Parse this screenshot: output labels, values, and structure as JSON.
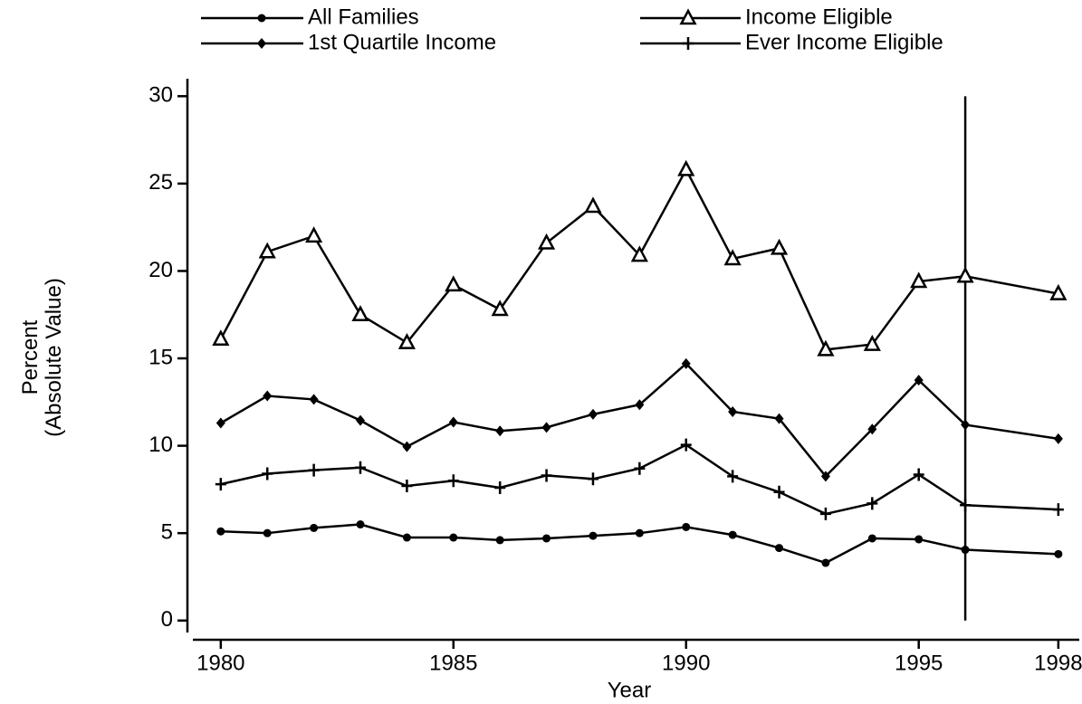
{
  "chart_data": {
    "type": "line",
    "x": [
      1980,
      1981,
      1982,
      1983,
      1984,
      1985,
      1986,
      1987,
      1988,
      1989,
      1990,
      1991,
      1992,
      1993,
      1994,
      1995,
      1996,
      1998
    ],
    "xlabel": "Year",
    "ylabel": [
      "Percent",
      "(Absolute Value)"
    ],
    "xlim": [
      1979.4,
      1998.45
    ],
    "xticks": [
      1980,
      1985,
      1990,
      1995,
      1998
    ],
    "ylim": [
      -1.1,
      31
    ],
    "yticks": [
      0,
      5,
      10,
      15,
      20,
      25,
      30
    ],
    "reference_line": {
      "x": 1996,
      "y": [
        0,
        30
      ]
    },
    "series": [
      {
        "name": "All Families",
        "color": "#000000",
        "marker": "circle",
        "values": [
          5.1,
          5.0,
          5.3,
          5.5,
          4.75,
          4.75,
          4.6,
          4.7,
          4.85,
          5.0,
          5.35,
          4.9,
          4.15,
          3.3,
          4.7,
          4.65,
          4.05,
          3.8
        ]
      },
      {
        "name": "Income Eligible",
        "color": "#000000",
        "marker": "triangle",
        "values": [
          16.1,
          21.1,
          22.0,
          17.5,
          15.9,
          19.2,
          17.8,
          21.6,
          23.7,
          20.9,
          25.8,
          20.7,
          21.3,
          15.5,
          15.8,
          19.4,
          19.7,
          18.7
        ]
      },
      {
        "name": "1st Quartile Income",
        "color": "#000000",
        "marker": "diamond",
        "values": [
          11.3,
          12.85,
          12.65,
          11.45,
          9.95,
          11.35,
          10.85,
          11.05,
          11.8,
          12.35,
          14.7,
          11.95,
          11.55,
          8.25,
          10.95,
          13.75,
          11.2,
          10.4
        ]
      },
      {
        "name": "Ever Income Eligible",
        "color": "#000000",
        "marker": "plus",
        "values": [
          7.8,
          8.4,
          8.6,
          8.75,
          7.7,
          8.0,
          7.6,
          8.3,
          8.1,
          8.7,
          10.05,
          8.25,
          7.35,
          6.1,
          6.7,
          8.35,
          6.6,
          6.35
        ]
      }
    ]
  }
}
